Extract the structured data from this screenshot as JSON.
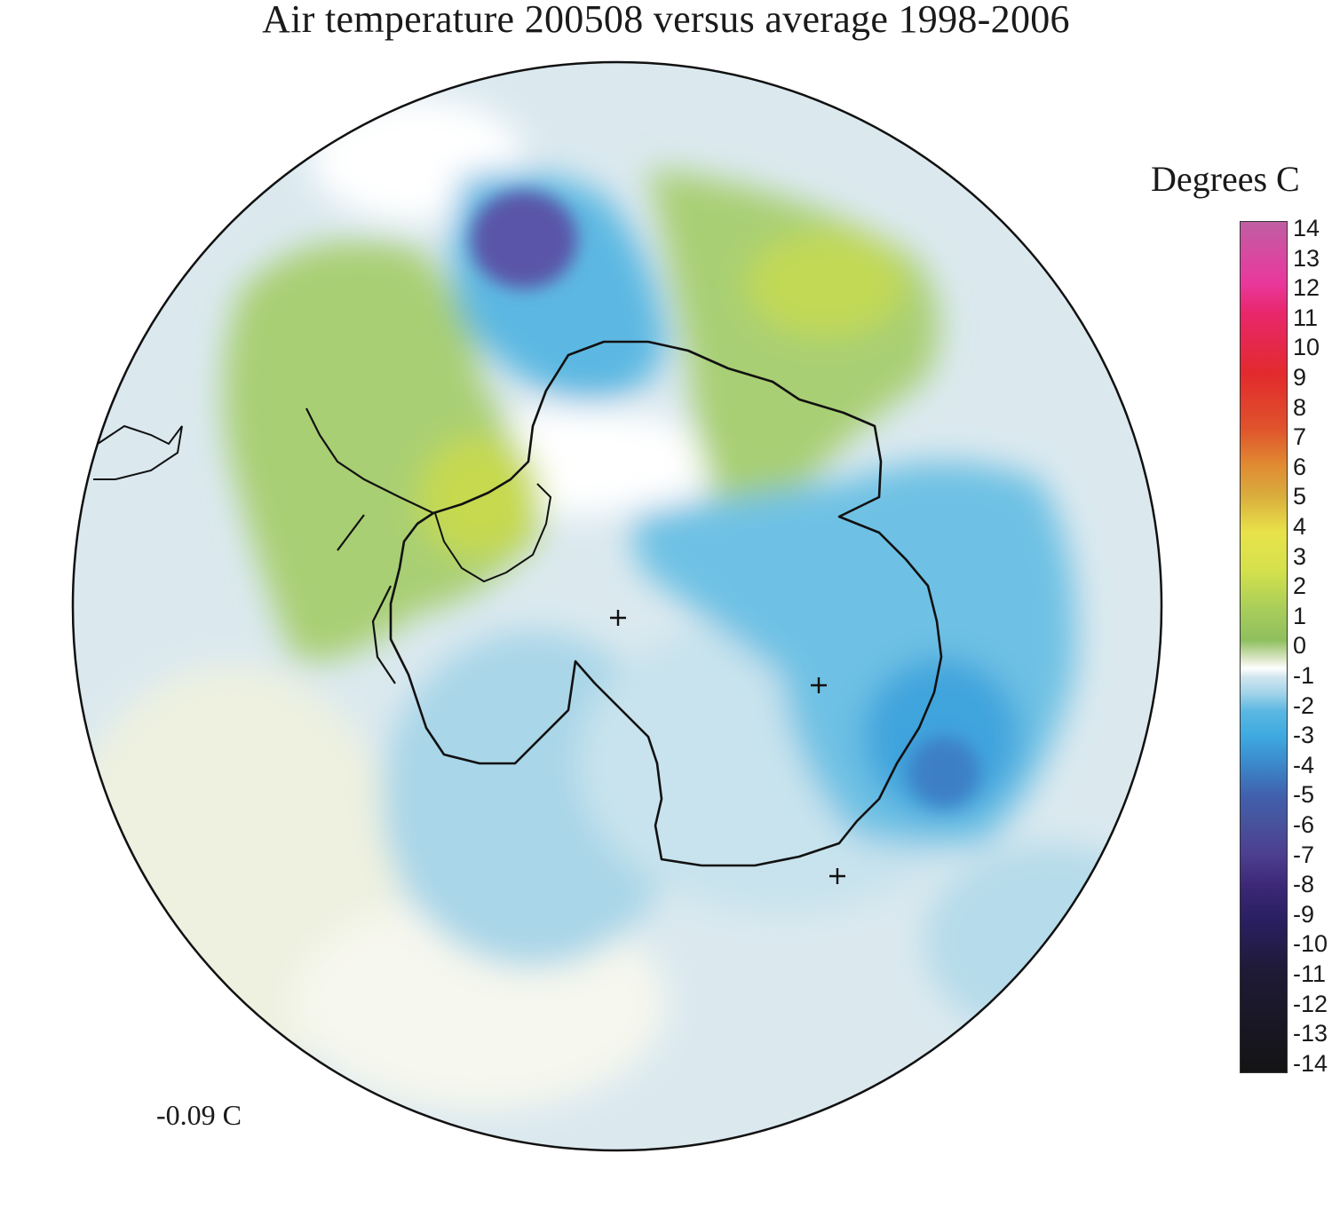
{
  "title": "Air temperature 200508 versus average 1998-2006",
  "legend": {
    "title": "Degrees C",
    "ticks": [
      "14",
      "13",
      "12",
      "11",
      "10",
      "9",
      "8",
      "7",
      "6",
      "5",
      "4",
      "3",
      "2",
      "1",
      "0",
      "-1",
      "-2",
      "-3",
      "-4",
      "-5",
      "-6",
      "-7",
      "-8",
      "-9",
      "-10",
      "-11",
      "-12",
      "-13",
      "-14"
    ],
    "min": -14,
    "max": 14
  },
  "mean_label": "-0.09 C",
  "colors": {
    "warm_green": "#9cc86a",
    "yellow_green": "#c6d94f",
    "cold_light": "#a9d6e8",
    "cold_mid": "#5cb8e2",
    "cold_deep": "#3e7fc4",
    "cold_purple": "#5a55a8",
    "neutral": "#dbe9ef",
    "coast": "#111111"
  }
}
